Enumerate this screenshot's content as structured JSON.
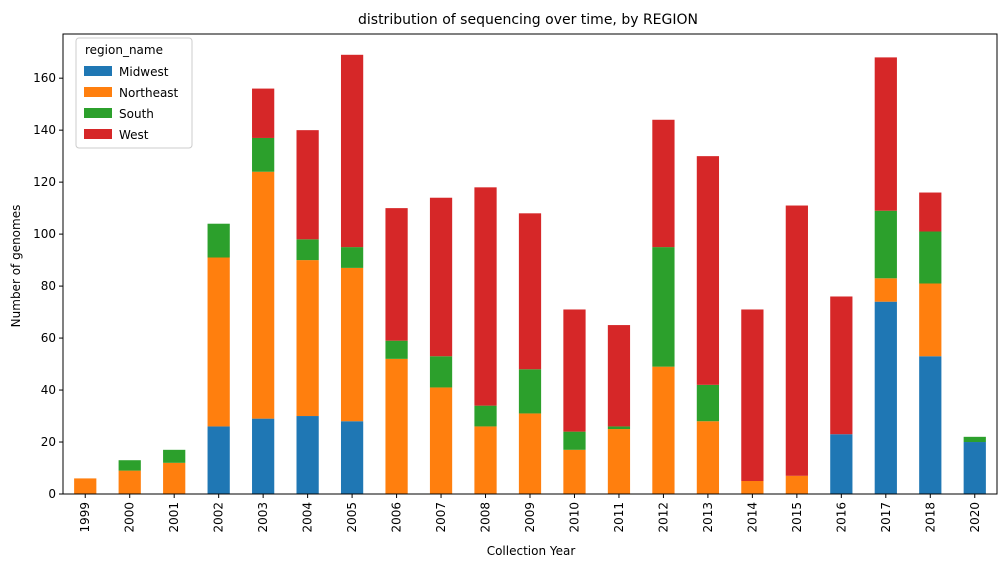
{
  "chart_data": {
    "type": "bar",
    "stacked": true,
    "title": "distribution of sequencing over time, by REGION",
    "xlabel": "Collection Year",
    "ylabel": "Number of genomes",
    "ylim": [
      0,
      177
    ],
    "yticks": [
      0,
      20,
      40,
      60,
      80,
      100,
      120,
      140,
      160
    ],
    "grid": false,
    "legend_title": "region_name",
    "legend_position": "top-left",
    "categories": [
      "1999",
      "2000",
      "2001",
      "2002",
      "2003",
      "2004",
      "2005",
      "2006",
      "2007",
      "2008",
      "2009",
      "2010",
      "2011",
      "2012",
      "2013",
      "2014",
      "2015",
      "2016",
      "2017",
      "2018",
      "2020"
    ],
    "series": [
      {
        "name": "Midwest",
        "color": "#1f77b4",
        "values": [
          0,
          0,
          0,
          26,
          29,
          30,
          28,
          0,
          0,
          0,
          0,
          0,
          0,
          0,
          0,
          0,
          0,
          23,
          74,
          53,
          20
        ]
      },
      {
        "name": "Northeast",
        "color": "#ff7f0e",
        "values": [
          6,
          9,
          12,
          65,
          95,
          60,
          59,
          52,
          41,
          26,
          31,
          17,
          25,
          49,
          28,
          5,
          7,
          0,
          9,
          28,
          0
        ]
      },
      {
        "name": "South",
        "color": "#2ca02c",
        "values": [
          0,
          4,
          5,
          13,
          13,
          8,
          8,
          7,
          12,
          8,
          17,
          7,
          1,
          46,
          14,
          0,
          0,
          0,
          26,
          20,
          2
        ]
      },
      {
        "name": "West",
        "color": "#d62728",
        "values": [
          0,
          0,
          0,
          0,
          19,
          42,
          74,
          51,
          61,
          84,
          60,
          47,
          39,
          49,
          88,
          66,
          104,
          53,
          59,
          15,
          0
        ]
      }
    ]
  }
}
